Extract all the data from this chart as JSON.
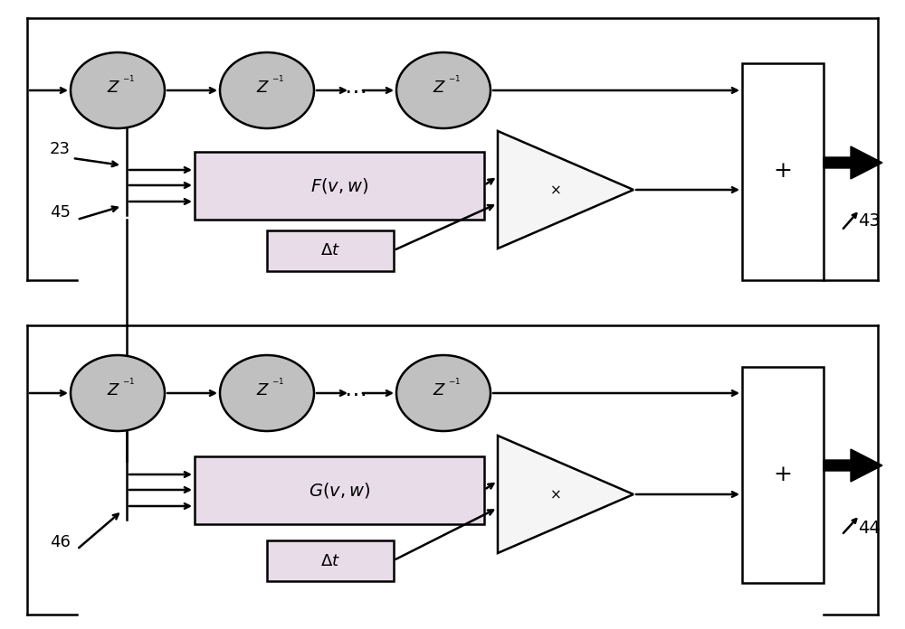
{
  "bg_color": "#ffffff",
  "line_color": "#000000",
  "ellipse_fill": "#c0c0c0",
  "box_fill_func": "#e8dce8",
  "box_fill_sum": "#ffffff",
  "box_fill_dt": "#e8dce8",
  "lw": 1.8,
  "fig_w": 10.0,
  "fig_h": 6.96,
  "dpi": 100
}
